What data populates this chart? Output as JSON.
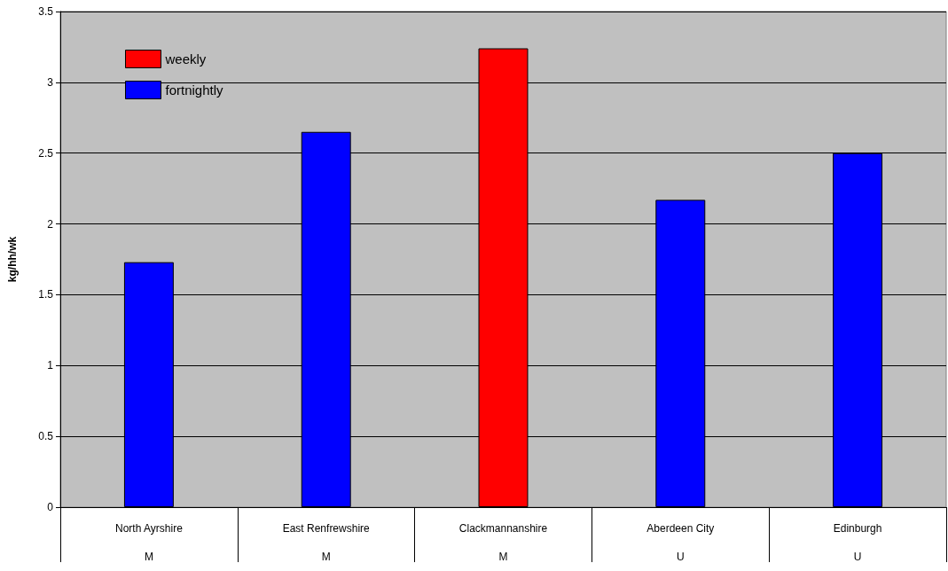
{
  "chart_data": {
    "type": "bar",
    "ylabel": "kg/hh/wk",
    "categories": [
      "North Ayrshire\nM",
      "East Renfrewshire\nM",
      "Clackmannanshire\nM",
      "Aberdeen City\nU",
      "Edinburgh\nU"
    ],
    "series": [
      {
        "name": "weekly",
        "color": "#ff0000",
        "values": [
          null,
          null,
          3.24,
          null,
          null
        ]
      },
      {
        "name": "fortnightly",
        "color": "#0000ff",
        "values": [
          1.73,
          2.65,
          null,
          2.17,
          2.5
        ]
      }
    ],
    "ylim": [
      0,
      3.5
    ],
    "yticks": [
      0,
      0.5,
      1,
      1.5,
      2,
      2.5,
      3,
      3.5
    ],
    "grid": "y",
    "legend": "top left"
  }
}
